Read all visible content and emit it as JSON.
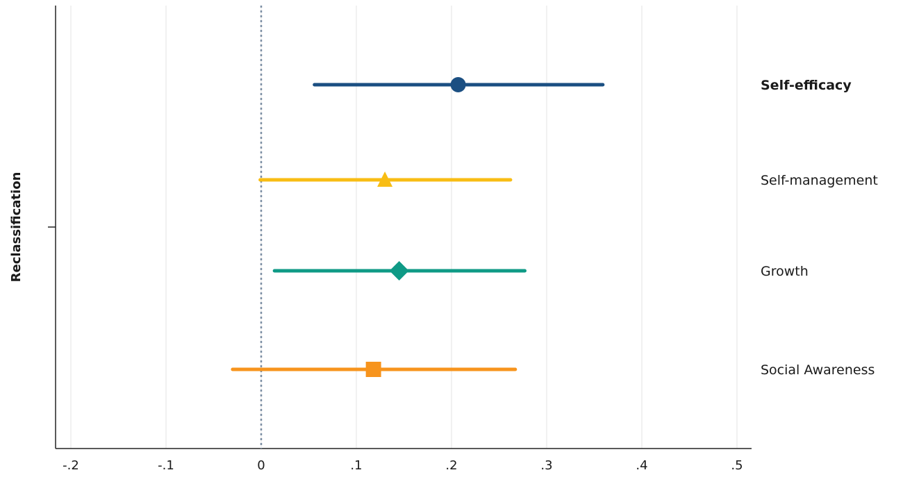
{
  "chart_data": {
    "type": "scatter",
    "subtype": "forest-plot",
    "title": "",
    "xlabel": "",
    "ylabel": "Reclassification",
    "xlim": [
      -0.2,
      0.5
    ],
    "x_ticks": [
      -0.2,
      -0.1,
      0,
      0.1,
      0.2,
      0.3,
      0.4,
      0.5
    ],
    "x_tick_labels": [
      "-.2",
      "-.1",
      "0",
      ".1",
      ".2",
      ".3",
      ".4",
      ".5"
    ],
    "reference_line": {
      "x": 0,
      "style": "dotted",
      "color": "#7b8ea3"
    },
    "grid": {
      "vertical": true,
      "horizontal": false,
      "color": "#e3e3e3"
    },
    "series": [
      {
        "name": "Self-efficacy",
        "estimate": 0.207,
        "ci_low": 0.056,
        "ci_high": 0.359,
        "marker": "circle",
        "color": "#1b4f82",
        "label_bold": true
      },
      {
        "name": "Self-management",
        "estimate": 0.13,
        "ci_low": -0.001,
        "ci_high": 0.262,
        "marker": "triangle",
        "color": "#f8bd14",
        "label_bold": false
      },
      {
        "name": "Growth",
        "estimate": 0.145,
        "ci_low": 0.014,
        "ci_high": 0.277,
        "marker": "diamond",
        "color": "#0f9a86",
        "label_bold": false
      },
      {
        "name": "Social Awareness",
        "estimate": 0.118,
        "ci_low": -0.03,
        "ci_high": 0.267,
        "marker": "square",
        "color": "#f7941d",
        "label_bold": false
      }
    ]
  }
}
